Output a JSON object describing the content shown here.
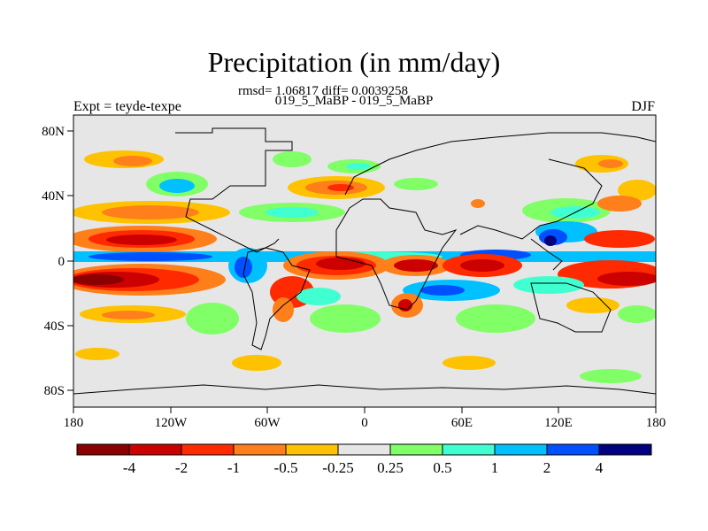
{
  "title": "Precipitation (in mm/day)",
  "stats": "rmsd= 1.06817 diff= 0.0039258",
  "runs": "019_5_MaBP - 019_5_MaBP",
  "expt_label": "Expt = teyde-texpe",
  "season": "DJF",
  "map": {
    "lat_ticks": [
      "80N",
      "40N",
      "0",
      "40S",
      "80S"
    ],
    "lon_ticks": [
      "180",
      "120W",
      "60W",
      "0",
      "60E",
      "120E",
      "180"
    ],
    "land_color": "#e6e6e6"
  },
  "colorbar": {
    "colors": [
      "#8b0000",
      "#cd0000",
      "#ff2a00",
      "#ff7f1a",
      "#ffc200",
      "#e6e6e6",
      "#80ff66",
      "#40ffd0",
      "#00c0ff",
      "#0050ff",
      "#000080"
    ],
    "labels": [
      "-4",
      "-2",
      "-1",
      "-0.5",
      "-0.25",
      "0.25",
      "0.5",
      "1",
      "2",
      "4"
    ]
  }
}
